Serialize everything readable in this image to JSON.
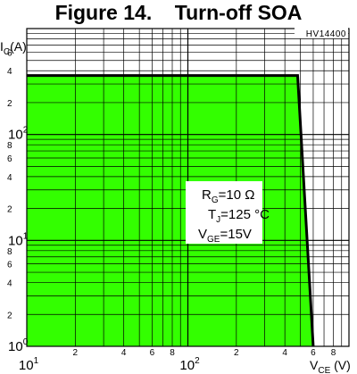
{
  "header": {
    "title": "Figure 14.    Turn-off SOA",
    "code": "HV14400"
  },
  "conditions": {
    "rg": {
      "main": "R",
      "sub": "G",
      "rest": "=10 Ω"
    },
    "tj": {
      "main": "T",
      "sub": "J",
      "rest": "=125 °C"
    },
    "vge": {
      "main": "V",
      "sub": "GE",
      "rest": "=15V"
    }
  },
  "colors": {
    "area_fill": "#33ff00",
    "grid": "#000000",
    "boundary": "#000000",
    "background": "#ffffff"
  },
  "chart_data": {
    "type": "area",
    "title": "Figure 14.    Turn-off SOA",
    "xlabel": {
      "main": "V",
      "sub": "CE",
      "rest": " (V)"
    },
    "ylabel": {
      "main": "I",
      "sub": "C",
      "rest": "(A)"
    },
    "xscale": "log",
    "yscale": "log",
    "xlim": [
      10,
      1000
    ],
    "ylim": [
      1,
      1000
    ],
    "grid": true,
    "legend": "none",
    "x_major_ticks": [
      {
        "value": 10,
        "base": "10",
        "exp": "1"
      },
      {
        "value": 100,
        "base": "10",
        "exp": "2"
      }
    ],
    "x_minor_ticks": [
      {
        "value": 20,
        "label": "2"
      },
      {
        "value": 40,
        "label": "4"
      },
      {
        "value": 60,
        "label": "6"
      },
      {
        "value": 80,
        "label": "8"
      },
      {
        "value": 200,
        "label": "2"
      },
      {
        "value": 400,
        "label": "4"
      },
      {
        "value": 600,
        "label": "6"
      },
      {
        "value": 800,
        "label": "8"
      }
    ],
    "y_major_ticks": [
      {
        "value": 1,
        "base": "10",
        "exp": "0"
      },
      {
        "value": 10,
        "base": "10",
        "exp": "1"
      },
      {
        "value": 100,
        "base": "10",
        "exp": "2"
      }
    ],
    "y_minor_ticks": [
      {
        "value": 2,
        "label": "2"
      },
      {
        "value": 4,
        "label": "4"
      },
      {
        "value": 6,
        "label": "6"
      },
      {
        "value": 8,
        "label": "8"
      },
      {
        "value": 20,
        "label": "2"
      },
      {
        "value": 40,
        "label": "4"
      },
      {
        "value": 60,
        "label": "6"
      },
      {
        "value": 80,
        "label": "8"
      },
      {
        "value": 200,
        "label": "2"
      },
      {
        "value": 400,
        "label": "4"
      },
      {
        "value": 600,
        "label": "6"
      }
    ],
    "series": [
      {
        "boundary": [
          {
            "x": 10,
            "y": 360
          },
          {
            "x": 480,
            "y": 360
          },
          {
            "x": 600,
            "y": 1
          }
        ]
      }
    ]
  }
}
